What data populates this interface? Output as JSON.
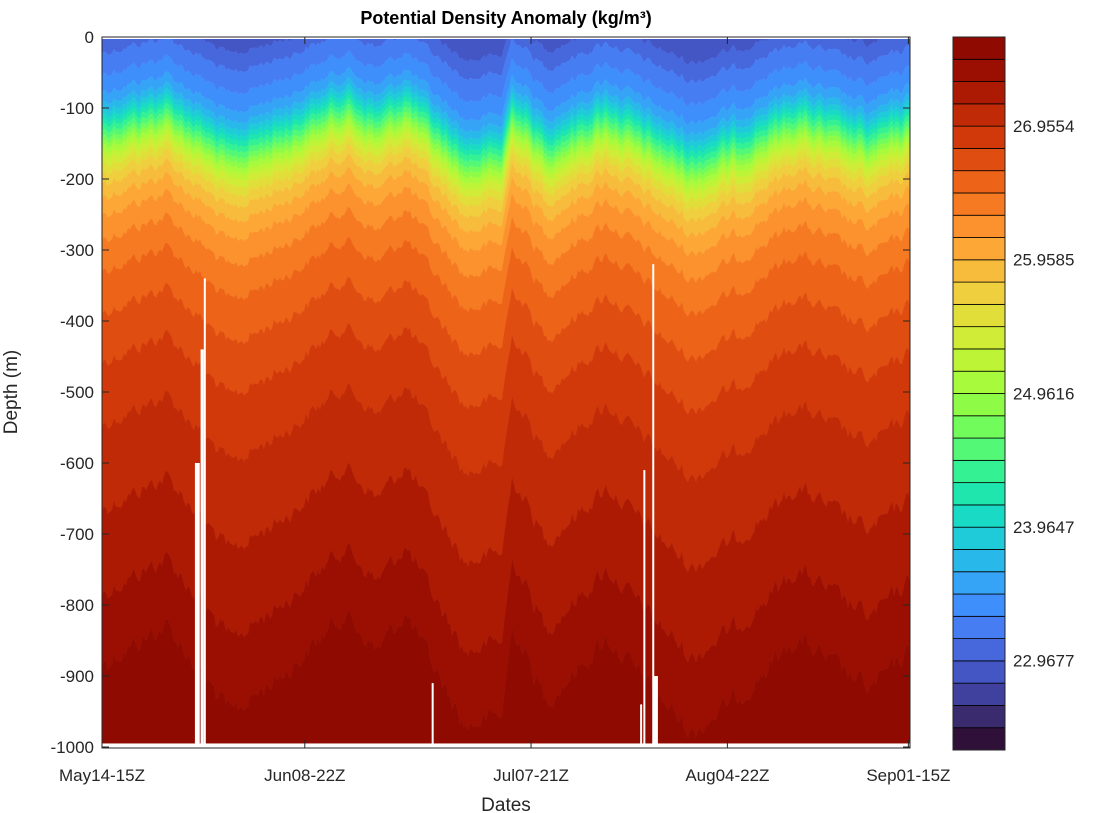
{
  "chart_data": {
    "type": "contour",
    "title": "Potential Density Anomaly (kg/m³)",
    "xlabel": "Dates",
    "ylabel": "Depth  (m)",
    "ylim": [
      -1000,
      0
    ],
    "yticks": [
      0,
      -100,
      -200,
      -300,
      -400,
      -500,
      -600,
      -700,
      -800,
      -900,
      -1000
    ],
    "x_index_range": [
      0,
      1000
    ],
    "xticks": [
      {
        "label": "May14-15Z",
        "index": 0
      },
      {
        "label": "Jun08-22Z",
        "index": 251
      },
      {
        "label": "Jul07-21Z",
        "index": 531
      },
      {
        "label": "Aug04-22Z",
        "index": 774
      },
      {
        "label": "Sep01-15Z",
        "index": 998
      }
    ],
    "colorbar": {
      "range": [
        22.3,
        27.62
      ],
      "n_levels": 32,
      "ticks": [
        "26.9554",
        "25.9585",
        "24.9616",
        "23.9647",
        "22.9677"
      ],
      "colors": [
        "#2f1038",
        "#3a2a6e",
        "#40409e",
        "#4455c4",
        "#4767dd",
        "#477df3",
        "#3e8ffb",
        "#36a4f6",
        "#29b8ea",
        "#1fcbd9",
        "#19dac4",
        "#1ee6ad",
        "#34f194",
        "#54f877",
        "#72fc5c",
        "#8efb47",
        "#a7fa3c",
        "#bdf435",
        "#d0ec36",
        "#e1de3a",
        "#efcf3d",
        "#f7bc3b",
        "#fca736",
        "#fb922d",
        "#f67a22",
        "#ed6317",
        "#e04d10",
        "#d2390a",
        "#c02a06",
        "#ad1a04",
        "#9b0f02",
        "#8f0a00"
      ]
    },
    "pycnocline_offset_m": [
      {
        "index": 0,
        "offset": -10
      },
      {
        "index": 80,
        "offset": -40
      },
      {
        "index": 160,
        "offset": 30
      },
      {
        "index": 240,
        "offset": -10
      },
      {
        "index": 300,
        "offset": -50
      },
      {
        "index": 340,
        "offset": -20
      },
      {
        "index": 375,
        "offset": -50
      },
      {
        "index": 450,
        "offset": 40
      },
      {
        "index": 495,
        "offset": 30
      },
      {
        "index": 508,
        "offset": -40
      },
      {
        "index": 550,
        "offset": 20
      },
      {
        "index": 625,
        "offset": -30
      },
      {
        "index": 730,
        "offset": 45
      },
      {
        "index": 800,
        "offset": 10
      },
      {
        "index": 860,
        "offset": -30
      },
      {
        "index": 950,
        "offset": 10
      },
      {
        "index": 1000,
        "offset": -20
      }
    ],
    "data_gaps": [
      {
        "index_from": 115,
        "index_to": 121,
        "depth_from": -600
      },
      {
        "index_from": 126,
        "index_to": 128,
        "depth_from": -340
      },
      {
        "index_from": 122,
        "index_to": 126,
        "depth_from": -440
      },
      {
        "index_from": 408,
        "index_to": 410,
        "depth_from": -910
      },
      {
        "index_from": 666,
        "index_to": 668,
        "depth_from": -940
      },
      {
        "index_from": 670,
        "index_to": 672,
        "depth_from": -610
      },
      {
        "index_from": 681,
        "index_to": 683,
        "depth_from": -320
      },
      {
        "index_from": 683,
        "index_to": 688,
        "depth_from": -900
      }
    ]
  }
}
